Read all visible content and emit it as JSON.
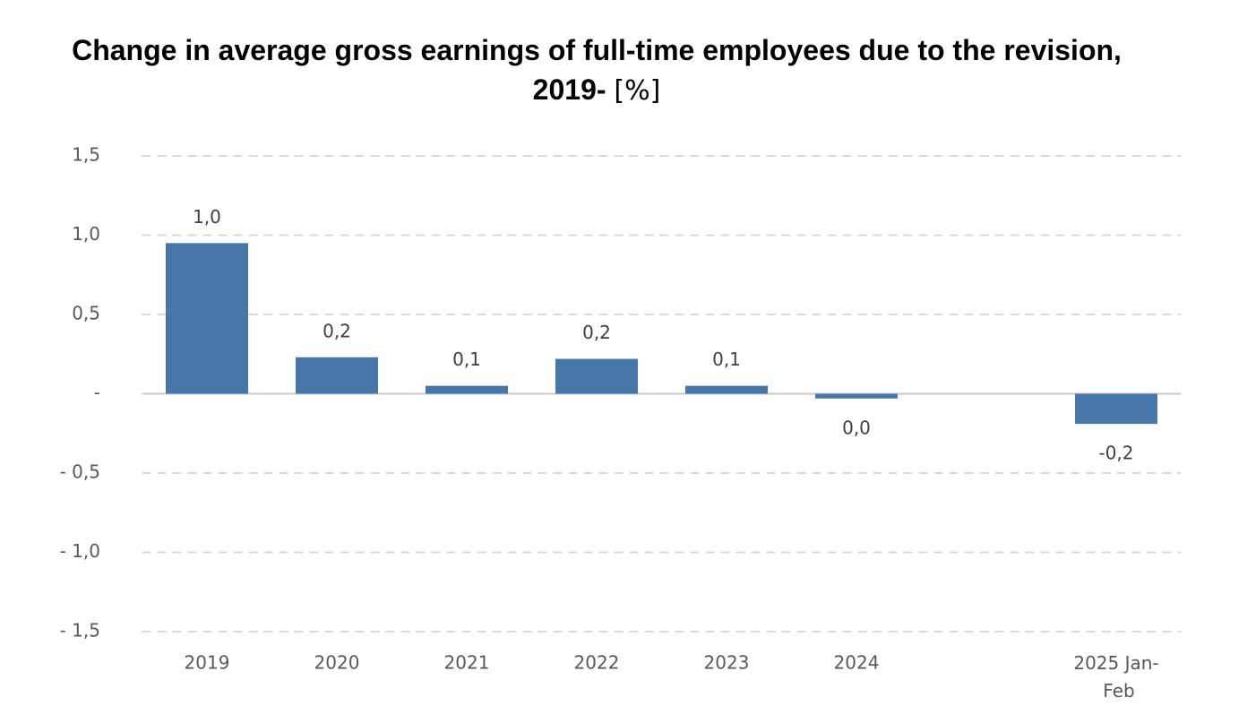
{
  "chart_data": {
    "type": "bar",
    "title": "Change in average gross earnings of full-time employees due to the revision, 2019-",
    "unit": "[%]",
    "categories": [
      "2019",
      "2020",
      "2021",
      "2022",
      "2023",
      "2024",
      null,
      "2025 Jan-Feb"
    ],
    "values": [
      0.95,
      0.23,
      0.05,
      0.22,
      0.05,
      -0.03,
      null,
      -0.19
    ],
    "value_labels": [
      "1,0",
      "0,2",
      "0,1",
      "0,2",
      "0,1",
      "0,0",
      null,
      "-0,2"
    ],
    "color": "#4677a8",
    "ylim": [
      -1.5,
      1.5
    ],
    "yticks": [
      {
        "value": 1.5,
        "label": "1,5"
      },
      {
        "value": 1.0,
        "label": "1,0"
      },
      {
        "value": 0.5,
        "label": "0,5"
      },
      {
        "value": 0,
        "label": "-"
      },
      {
        "value": -0.5,
        "label": "- 0,5"
      },
      {
        "value": -1.0,
        "label": "- 1,0"
      },
      {
        "value": -1.5,
        "label": "- 1,5"
      }
    ],
    "grid": true
  }
}
